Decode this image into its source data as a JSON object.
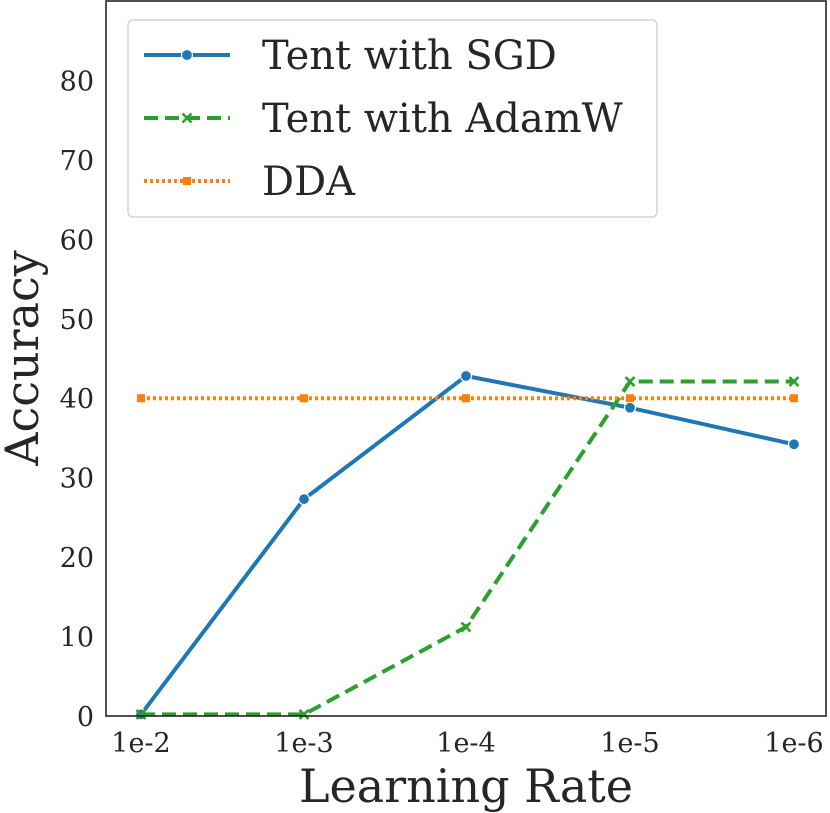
{
  "chart_data": {
    "type": "line",
    "title": "",
    "xlabel": "Learning Rate",
    "ylabel": "Accuracy",
    "categories": [
      "1e-2",
      "1e-3",
      "1e-4",
      "1e-5",
      "1e-6"
    ],
    "ylim": [
      0,
      90
    ],
    "yticks": [
      "0",
      "10",
      "20",
      "30",
      "40",
      "50",
      "60",
      "70",
      "80"
    ],
    "grid": false,
    "legend_position": "top-left",
    "series": [
      {
        "name": "Tent with SGD",
        "values": [
          0.2,
          27.3,
          42.8,
          38.8,
          34.2
        ],
        "color": "#1f77b4",
        "dash": "solid",
        "marker": "circle"
      },
      {
        "name": "Tent with AdamW",
        "values": [
          0.2,
          0.2,
          11.2,
          42.1,
          42.1
        ],
        "color": "#2ca02c",
        "dash": "dashed",
        "marker": "x"
      },
      {
        "name": "DDA",
        "values": [
          40.0,
          40.0,
          40.0,
          40.0,
          40.0
        ],
        "color": "#ff7f0e",
        "dash": "dotted",
        "marker": "square"
      }
    ]
  }
}
